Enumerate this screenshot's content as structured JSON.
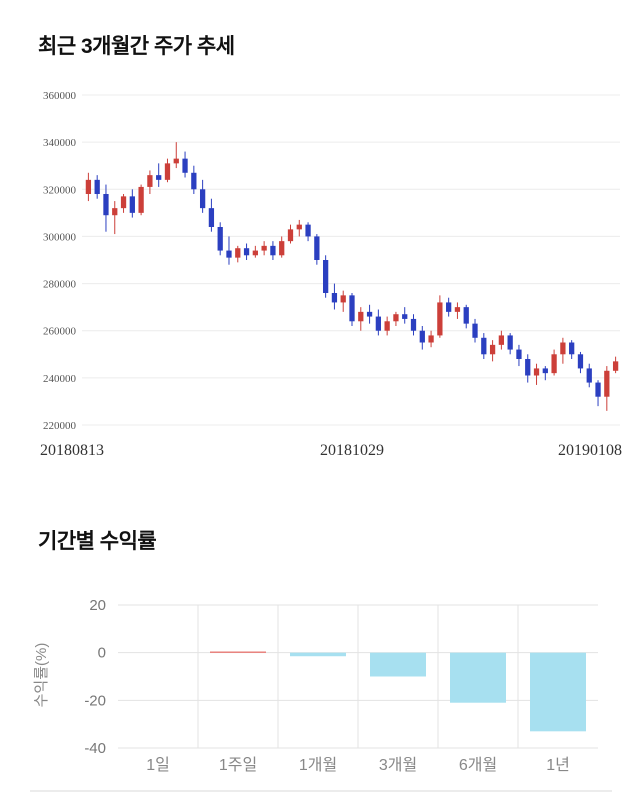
{
  "chart_data": [
    {
      "type": "candlestick",
      "title": "최근 3개월간 주가 추세",
      "x_tick_labels": [
        "20180813",
        "20181029",
        "20190108"
      ],
      "y_ticks": [
        220000,
        240000,
        260000,
        280000,
        300000,
        320000,
        340000,
        360000
      ],
      "ylim": [
        220000,
        360000
      ],
      "grid": true,
      "up_color": "#cc3f39",
      "down_color": "#2b3fc0",
      "candles": [
        [
          318000,
          327000,
          315000,
          324000
        ],
        [
          324000,
          326000,
          316000,
          318000
        ],
        [
          318000,
          322000,
          302000,
          309000
        ],
        [
          309000,
          315000,
          301000,
          312000
        ],
        [
          312000,
          318000,
          310000,
          317000
        ],
        [
          317000,
          320000,
          308000,
          310000
        ],
        [
          310000,
          322000,
          309000,
          321000
        ],
        [
          321000,
          328000,
          318000,
          326000
        ],
        [
          326000,
          331000,
          321000,
          324000
        ],
        [
          324000,
          333000,
          323000,
          331000
        ],
        [
          331000,
          340000,
          329000,
          333000
        ],
        [
          333000,
          336000,
          325000,
          327000
        ],
        [
          327000,
          330000,
          318000,
          320000
        ],
        [
          320000,
          324000,
          310000,
          312000
        ],
        [
          312000,
          316000,
          302000,
          304000
        ],
        [
          304000,
          306000,
          292000,
          294000
        ],
        [
          294000,
          300000,
          288000,
          291000
        ],
        [
          291000,
          296000,
          289000,
          295000
        ],
        [
          295000,
          297000,
          290000,
          292000
        ],
        [
          292000,
          296000,
          291000,
          294000
        ],
        [
          294000,
          298000,
          292000,
          296000
        ],
        [
          296000,
          298000,
          290000,
          292000
        ],
        [
          292000,
          300000,
          291000,
          298000
        ],
        [
          298000,
          305000,
          297000,
          303000
        ],
        [
          303000,
          307000,
          300000,
          305000
        ],
        [
          305000,
          306000,
          298000,
          300000
        ],
        [
          300000,
          301000,
          288000,
          290000
        ],
        [
          290000,
          292000,
          274000,
          276000
        ],
        [
          276000,
          280000,
          269000,
          272000
        ],
        [
          272000,
          277000,
          268000,
          275000
        ],
        [
          275000,
          276000,
          262000,
          264000
        ],
        [
          264000,
          270000,
          260000,
          268000
        ],
        [
          268000,
          271000,
          263000,
          266000
        ],
        [
          266000,
          269000,
          258000,
          260000
        ],
        [
          260000,
          266000,
          258000,
          264000
        ],
        [
          264000,
          268000,
          262000,
          267000
        ],
        [
          267000,
          270000,
          263000,
          265000
        ],
        [
          265000,
          267000,
          258000,
          260000
        ],
        [
          260000,
          262000,
          252000,
          255000
        ],
        [
          255000,
          260000,
          253000,
          258000
        ],
        [
          258000,
          275000,
          257000,
          272000
        ],
        [
          272000,
          274000,
          266000,
          268000
        ],
        [
          268000,
          272000,
          265000,
          270000
        ],
        [
          270000,
          271000,
          261000,
          263000
        ],
        [
          263000,
          265000,
          255000,
          257000
        ],
        [
          257000,
          259000,
          248000,
          250000
        ],
        [
          250000,
          256000,
          247000,
          254000
        ],
        [
          254000,
          260000,
          252000,
          258000
        ],
        [
          258000,
          259000,
          250000,
          252000
        ],
        [
          252000,
          254000,
          245000,
          248000
        ],
        [
          248000,
          250000,
          238000,
          241000
        ],
        [
          241000,
          246000,
          237000,
          244000
        ],
        [
          244000,
          245000,
          239000,
          242000
        ],
        [
          242000,
          252000,
          241000,
          250000
        ],
        [
          250000,
          257000,
          246000,
          255000
        ],
        [
          255000,
          256000,
          248000,
          250000
        ],
        [
          250000,
          251000,
          242000,
          244000
        ],
        [
          244000,
          246000,
          236000,
          238000
        ],
        [
          238000,
          239000,
          228000,
          232000
        ],
        [
          232000,
          245000,
          226000,
          243000
        ],
        [
          243000,
          249000,
          242000,
          247000
        ]
      ]
    },
    {
      "type": "bar",
      "title": "기간별 수익률",
      "ylabel": "수익률(%)",
      "categories": [
        "1일",
        "1주일",
        "1개월",
        "3개월",
        "6개월",
        "1년"
      ],
      "values": [
        0,
        0.5,
        -1.5,
        -10,
        -21,
        -33
      ],
      "y_ticks": [
        20,
        0,
        -20,
        -40
      ],
      "ylim": [
        -40,
        20
      ],
      "grid": true,
      "legend": "none",
      "positive_color": "#e8827e",
      "negative_color": "#a7e0f0"
    }
  ]
}
